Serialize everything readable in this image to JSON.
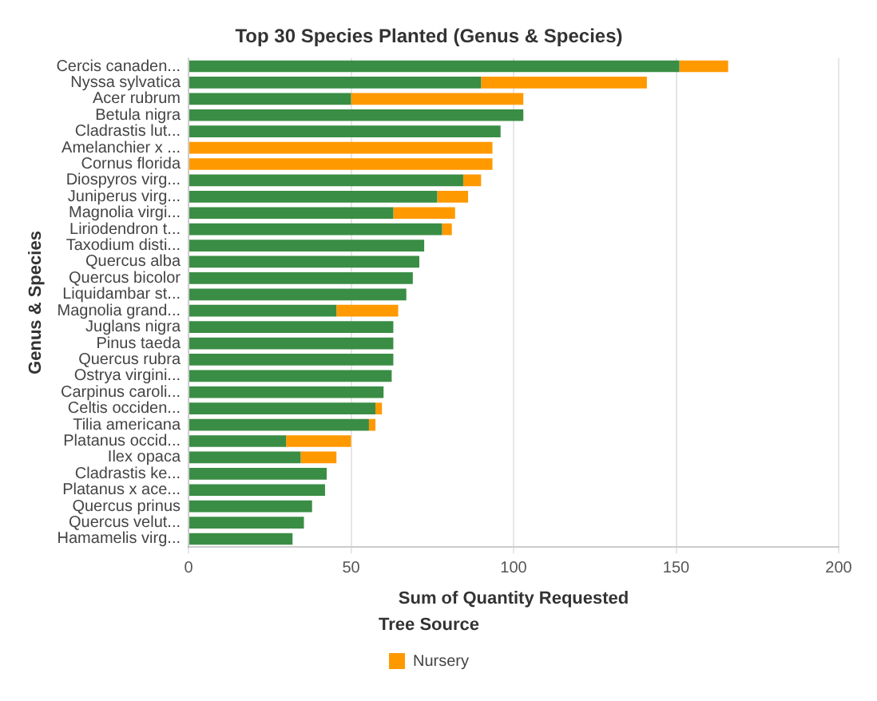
{
  "chart_data": {
    "type": "bar",
    "orientation": "horizontal",
    "stacked": true,
    "title": "Top 30 Species Planted (Genus & Species)",
    "xlabel": "Sum of Quantity Requested",
    "ylabel": "Genus & Species",
    "legend_title": "Tree Source",
    "legend": "bottom",
    "grid": "x",
    "categories": [
      "Cercis canaden...",
      "Nyssa sylvatica",
      "Acer rubrum",
      "Betula nigra",
      "Cladrastis lut...",
      "Amelanchier x ...",
      "Cornus florida",
      "Diospyros virg...",
      "Juniperus virg...",
      "Magnolia virgi...",
      "Liriodendron t...",
      "Taxodium disti...",
      "Quercus alba",
      "Quercus bicolor",
      "Liquidambar st...",
      "Magnolia grand...",
      "Juglans nigra",
      "Pinus taeda",
      "Quercus rubra",
      "Ostrya virgini...",
      "Carpinus caroli...",
      "Celtis occiden...",
      "Tilia americana",
      "Platanus occid...",
      "Ilex opaca",
      "Cladrastis ke...",
      "Platanus x ace...",
      "Quercus prinus",
      "Quercus velut...",
      "Hamamelis virg..."
    ],
    "xlim": [
      0,
      200
    ],
    "xticks": [
      0,
      50,
      100,
      150,
      200
    ],
    "series": [
      {
        "color": "#3a8d44",
        "values": [
          151,
          90,
          50,
          103,
          96,
          0,
          0,
          84.5,
          76.5,
          63,
          78,
          72.5,
          71,
          69,
          67,
          45.5,
          63,
          63,
          63,
          62.5,
          60,
          57.5,
          55.5,
          30,
          34.5,
          42.5,
          42,
          38,
          35.5,
          32
        ]
      },
      {
        "name": "Nursery",
        "color": "#ff9900",
        "values": [
          15,
          51,
          53,
          0,
          0,
          93.5,
          93.5,
          5.5,
          9.5,
          19,
          3,
          0,
          0,
          0,
          0,
          19,
          0,
          0,
          0,
          0,
          0,
          2,
          2,
          20,
          11,
          0,
          0,
          0,
          0,
          0
        ]
      }
    ]
  }
}
